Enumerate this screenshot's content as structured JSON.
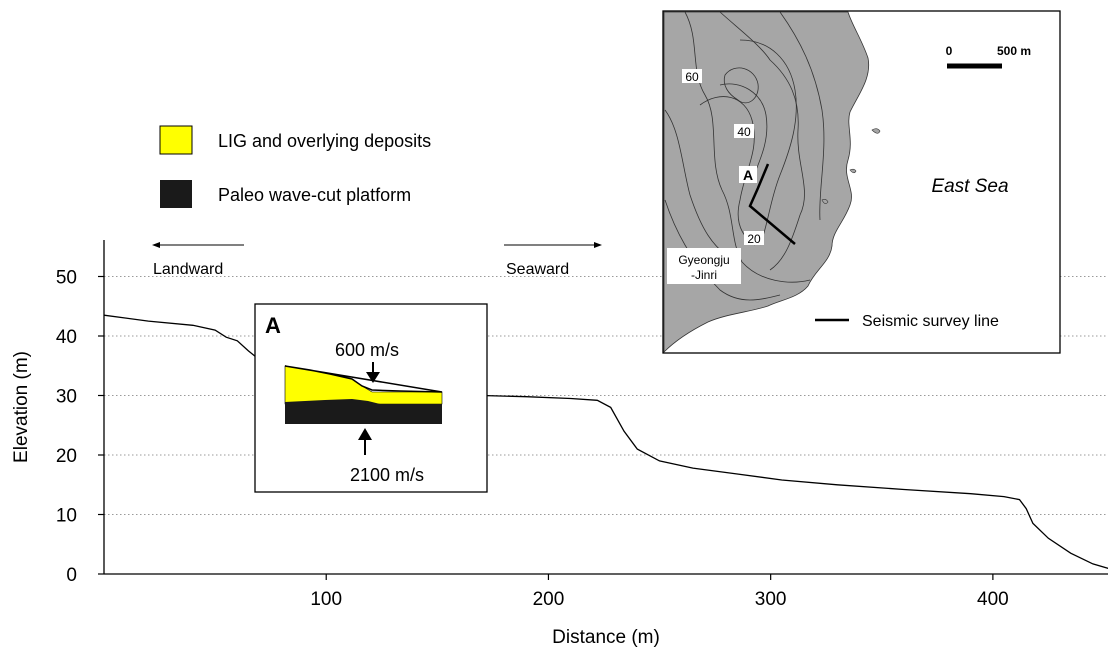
{
  "chart_data": {
    "type": "line",
    "xlabel": "Distance (m)",
    "ylabel": "Elevation (m)",
    "xlim": [
      0,
      455
    ],
    "ylim": [
      0,
      55
    ],
    "x_ticks": [
      100,
      200,
      300,
      400
    ],
    "y_ticks": [
      0,
      10,
      20,
      30,
      40,
      50
    ],
    "grid": "horizontal dotted",
    "series": [
      {
        "points": [
          [
            0,
            43.5
          ],
          [
            20,
            42.5
          ],
          [
            40,
            41.8
          ],
          [
            50,
            41
          ],
          [
            55,
            39.8
          ],
          [
            60,
            39.2
          ],
          [
            65,
            37.5
          ],
          [
            70,
            36
          ],
          [
            78,
            35
          ],
          [
            90,
            34
          ],
          [
            100,
            33
          ],
          [
            110,
            32
          ],
          [
            120,
            31
          ],
          [
            130,
            30.7
          ],
          [
            150,
            30.3
          ],
          [
            170,
            30
          ],
          [
            190,
            29.8
          ],
          [
            210,
            29.5
          ],
          [
            222,
            29.2
          ],
          [
            228,
            28
          ],
          [
            234,
            24
          ],
          [
            240,
            21
          ],
          [
            250,
            19
          ],
          [
            265,
            17.8
          ],
          [
            285,
            16.8
          ],
          [
            305,
            15.8
          ],
          [
            330,
            15
          ],
          [
            360,
            14.2
          ],
          [
            390,
            13.5
          ],
          [
            405,
            13
          ],
          [
            412,
            12.5
          ],
          [
            415,
            11
          ],
          [
            418,
            8.5
          ],
          [
            425,
            6
          ],
          [
            435,
            3.5
          ],
          [
            445,
            1.7
          ],
          [
            455,
            0.6
          ]
        ]
      }
    ],
    "annotations": {
      "landward": "Landward",
      "seaward": "Seaward"
    }
  },
  "legend": {
    "items": [
      {
        "label": "LIG and overlying deposits",
        "color": "#ffff00"
      },
      {
        "label": "Paleo wave-cut platform",
        "color": "#1a1a1a"
      }
    ]
  },
  "inset_profile": {
    "letter": "A",
    "upper_velocity": "600 m/s",
    "lower_velocity": "2100 m/s"
  },
  "inset_map": {
    "scale_zero": "0",
    "scale_label": "500 m",
    "sea_label": "East Sea",
    "place_line1": "Gyeongju",
    "place_line2": "-Jinri",
    "profile_label": "A",
    "contour_60": "60",
    "contour_40": "40",
    "contour_20": "20",
    "legend_label": "Seismic survey line",
    "land_color": "#a6a6a6"
  }
}
